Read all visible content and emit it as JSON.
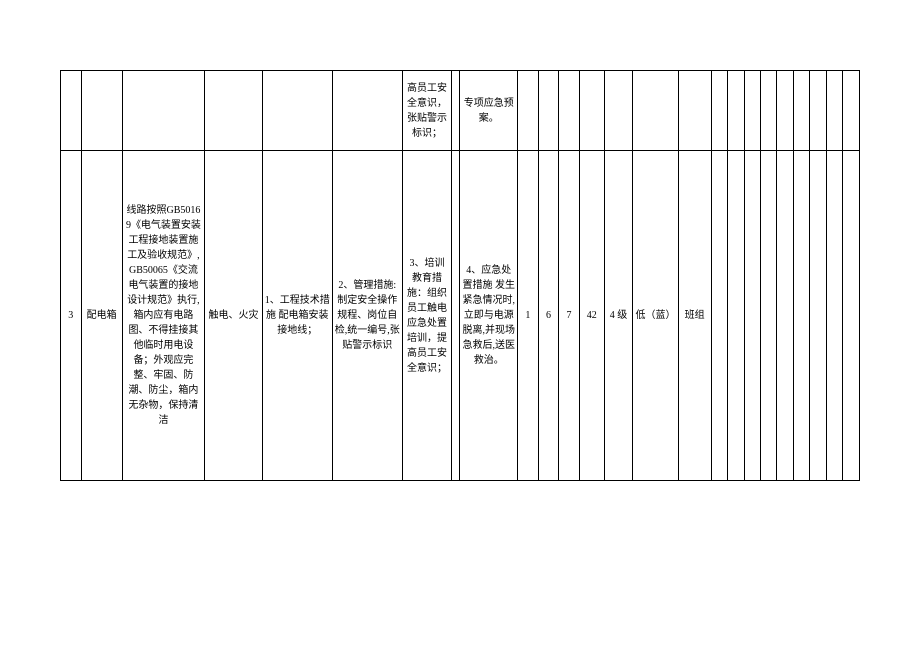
{
  "table": {
    "columns": 25,
    "border_color": "#000000",
    "background_color": "#ffffff",
    "font_size": 10,
    "text_color": "#000000",
    "rows": [
      {
        "cells": [
          {
            "v": ""
          },
          {
            "v": ""
          },
          {
            "v": ""
          },
          {
            "v": ""
          },
          {
            "v": ""
          },
          {
            "v": ""
          },
          {
            "v": "高员工安全意识，张贴警示标识；"
          },
          {
            "v": ""
          },
          {
            "v": "专项应急预案。"
          },
          {
            "v": ""
          },
          {
            "v": ""
          },
          {
            "v": ""
          },
          {
            "v": ""
          },
          {
            "v": ""
          },
          {
            "v": ""
          },
          {
            "v": ""
          },
          {
            "v": ""
          },
          {
            "v": ""
          },
          {
            "v": ""
          },
          {
            "v": ""
          },
          {
            "v": ""
          },
          {
            "v": ""
          },
          {
            "v": ""
          },
          {
            "v": ""
          },
          {
            "v": ""
          }
        ]
      },
      {
        "cells": [
          {
            "v": "3"
          },
          {
            "v": "配电箱"
          },
          {
            "v": "线路按照GB50169《电气装置安装工程接地装置施工及验收规范》,GB50065《交流电气装置的接地设计规范》执行,箱内应有电路图、不得挂接其他临时用电设备；外观应完整、牢固、防潮、防尘，箱内无杂物，保持清洁"
          },
          {
            "v": "触电、火灾"
          },
          {
            "v": "1、工程技术措施 配电箱安装接地线；"
          },
          {
            "v": "2、管理措施:制定安全操作规程、岗位自检,统一编号,张贴警示标识"
          },
          {
            "v": "3、培训教育措施：组织员工触电应急处置培训，提高员工安全意识；"
          },
          {
            "v": ""
          },
          {
            "v": "4、应急处置措施 发生紧急情况时,立即与电源脱离,并现场急救后,送医救治。"
          },
          {
            "v": "1"
          },
          {
            "v": "6"
          },
          {
            "v": "7"
          },
          {
            "v": "42"
          },
          {
            "v": "4 级"
          },
          {
            "v": "低（蓝）"
          },
          {
            "v": "班组"
          },
          {
            "v": ""
          },
          {
            "v": ""
          },
          {
            "v": ""
          },
          {
            "v": ""
          },
          {
            "v": ""
          },
          {
            "v": ""
          },
          {
            "v": ""
          },
          {
            "v": ""
          },
          {
            "v": ""
          }
        ]
      }
    ],
    "row_heights": [
      "80px",
      "330px"
    ],
    "col_classes": [
      "c0",
      "c1",
      "c2",
      "c3",
      "c4",
      "c5",
      "c6",
      "c7",
      "c8",
      "c9",
      "c10",
      "c11",
      "c12",
      "c13",
      "c14",
      "c15",
      "c16",
      "c17",
      "c18",
      "c19",
      "c20",
      "c21",
      "c22",
      "c23",
      "c24"
    ]
  }
}
